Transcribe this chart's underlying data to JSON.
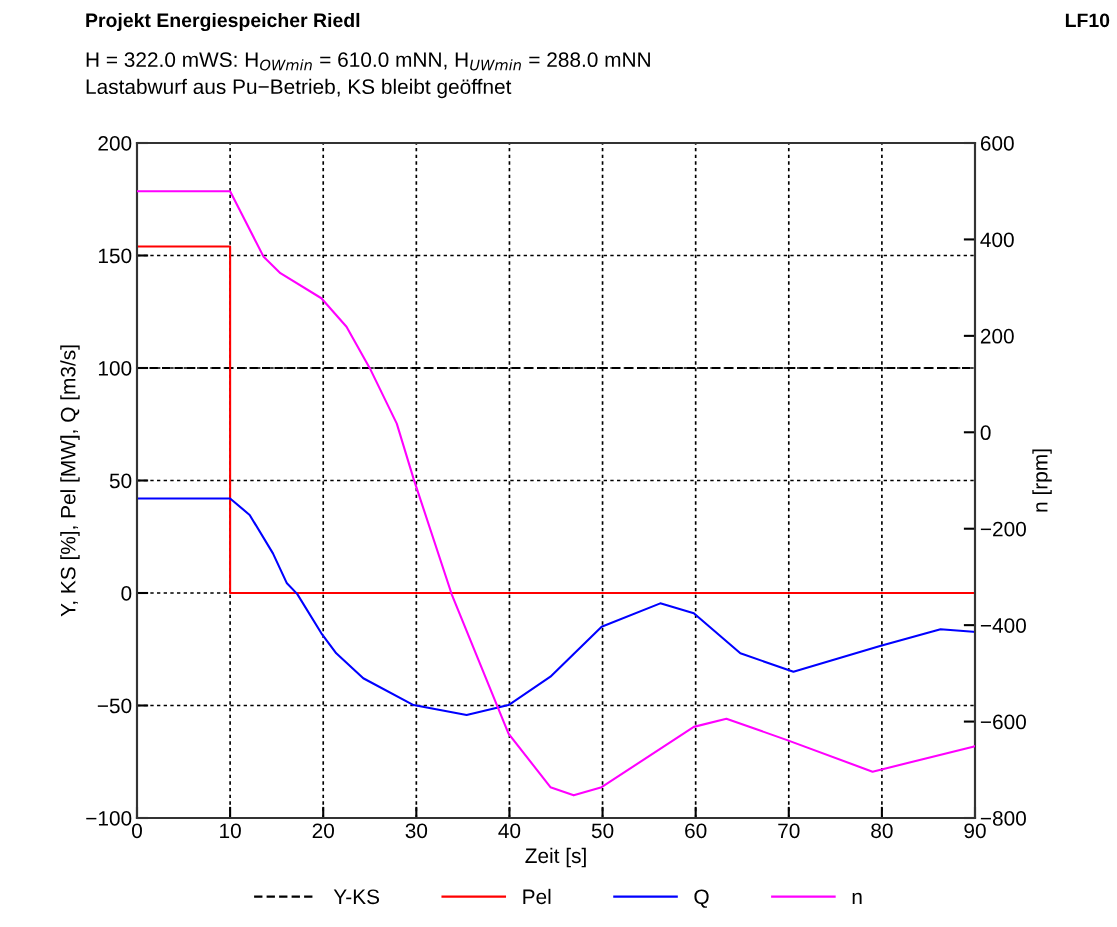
{
  "chart_data": {
    "type": "line",
    "title": "Projekt Energiespeicher Riedl",
    "subtitle": "H = 322.0 mWS: H$_{OWmin}$ = 610.0 mNN, H$_{UWmin}$ = 288.0 mNN\nLastabwurf aus Pu−Betrieb, KS bleibt geöffnet",
    "annotations": [
      "LF10"
    ],
    "xlabel": "Zeit [s]",
    "ylabel": "Y, KS [%], Pel [MW], Q [m3/s]",
    "y2label": "n [rpm]",
    "xlim": [
      0,
      90
    ],
    "xticks": [
      0,
      10,
      20,
      30,
      40,
      50,
      60,
      70,
      80,
      90
    ],
    "ylim": [
      -100,
      200
    ],
    "yticks": [
      -100,
      -50,
      0,
      50,
      100,
      150,
      200
    ],
    "y2lim": [
      -800,
      600
    ],
    "y2ticks": [
      -800,
      -600,
      -400,
      -200,
      0,
      200,
      400,
      600
    ],
    "grid": true,
    "legend": "bottom",
    "series": [
      {
        "name": "Y-KS",
        "color": "#000000",
        "line_style": "dashed",
        "x": [
          0,
          90
        ],
        "values": [
          100,
          100
        ]
      },
      {
        "name": "Pel",
        "color": "#ff0000",
        "line_style": "solid",
        "x": [
          0,
          10,
          10,
          90
        ],
        "values": [
          154,
          154,
          0,
          0
        ]
      },
      {
        "name": "Q",
        "color": "#0000ff",
        "line_style": "solid",
        "x": [
          0,
          10,
          12.1,
          14.6,
          16.1,
          17.2,
          19.8,
          21.4,
          24.3,
          29.7,
          35.4,
          39.9,
          44.4,
          49.9,
          56.2,
          59.8,
          64.8,
          70.5,
          79.8,
          86.3,
          89.8,
          90
        ],
        "values": [
          42,
          42,
          34.7,
          17.6,
          4.3,
          -0.4,
          -17.9,
          -26.8,
          -37.9,
          -49.8,
          -54.2,
          -49.8,
          -37.2,
          -15,
          -4.6,
          -9,
          -26.8,
          -35,
          -23.6,
          -16.1,
          -17.2,
          -17.3
        ]
      },
      {
        "name": "n",
        "color": "#ff00ff",
        "line_style": "solid",
        "axis": "y2",
        "x": [
          0,
          10,
          13.6,
          15.4,
          19.8,
          22.5,
          25.0,
          27.9,
          29.7,
          33.8,
          39.9,
          44.4,
          46.9,
          49.9,
          59.8,
          63.3,
          69.9,
          79.0,
          89.8,
          90
        ],
        "values": [
          500,
          500,
          364,
          330,
          278,
          219,
          133,
          18,
          -96,
          -336,
          -625,
          -736,
          -753,
          -736,
          -611,
          -594,
          -639,
          -704,
          -652,
          -651
        ]
      }
    ]
  }
}
